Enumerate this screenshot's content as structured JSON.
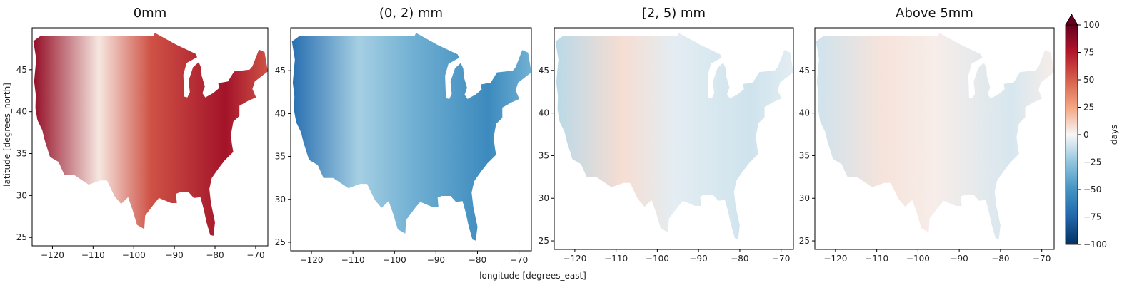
{
  "chart_data": {
    "type": "heatmap",
    "panels": [
      {
        "title": "0mm",
        "mean_value": 55,
        "hot_west_value": 85,
        "hot_east_value": 80,
        "hot_southwest_value": 5
      },
      {
        "title": "(0, 2) mm",
        "mean_value": -35,
        "hot_west_value": -70,
        "hot_east_value": -55,
        "hot_southwest_value": -20
      },
      {
        "title": "[2, 5) mm",
        "mean_value": -5,
        "hot_west_value": -15,
        "hot_east_value": -10,
        "hot_southwest_value": 8
      },
      {
        "title": "Above 5mm",
        "mean_value": 3,
        "hot_west_value": -10,
        "hot_east_value": -8,
        "hot_southwest_value": 6
      }
    ],
    "xlabel": "longitude [degrees_east]",
    "ylabel": "latitude [degrees_north]",
    "xlim": [
      -125,
      -67
    ],
    "ylim": [
      24,
      50
    ],
    "x_ticks": [
      -120,
      -110,
      -100,
      -90,
      -80,
      -70
    ],
    "x_tick_labels": [
      "−120",
      "−110",
      "−100",
      "−90",
      "−80",
      "−70"
    ],
    "y_ticks": [
      25,
      30,
      35,
      40,
      45
    ],
    "y_tick_labels": [
      "25",
      "30",
      "35",
      "40",
      "45"
    ],
    "colorbar": {
      "label": "days",
      "min": -100,
      "max": 100,
      "ticks": [
        100,
        75,
        50,
        25,
        0,
        -25,
        -50,
        -75,
        -100
      ],
      "tick_labels": [
        "100",
        "75",
        "50",
        "25",
        "0",
        "−25",
        "−50",
        "−75",
        "−100"
      ],
      "extend": "max",
      "colormap": "RdBu_r"
    },
    "grid": false
  }
}
